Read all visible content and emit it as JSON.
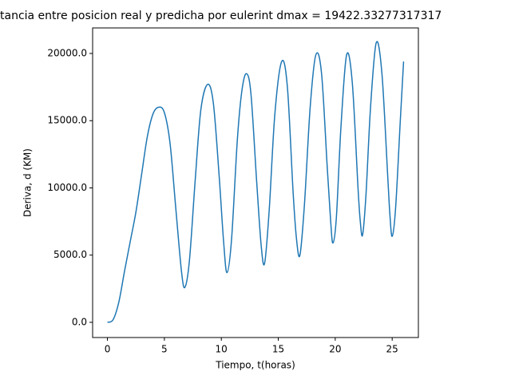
{
  "chart_data": {
    "type": "line",
    "title": "tancia entre posicion real y predicha por eulerint dmax = 19422.33277317317",
    "xlabel": "Tiempo, t(horas)",
    "ylabel": "Deriva, d (KM)",
    "x": [
      0,
      0.5,
      1,
      1.5,
      2,
      2.5,
      3,
      3.5,
      4,
      4.5,
      5,
      5.5,
      6,
      6.5,
      6.8,
      7.2,
      7.7,
      8.2,
      8.8,
      9.3,
      9.8,
      10.2,
      10.5,
      10.9,
      11.4,
      11.8,
      12.2,
      12.6,
      13.1,
      13.5,
      13.8,
      14.2,
      14.7,
      15.3,
      15.8,
      16.3,
      16.6,
      16.9,
      17.3,
      17.8,
      18.3,
      18.8,
      19.3,
      19.6,
      19.8,
      20.1,
      20.5,
      21,
      21.5,
      22,
      22.2,
      22.4,
      22.7,
      23.1,
      23.6,
      24.1,
      24.6,
      24.8,
      25,
      25.3,
      25.7,
      26
    ],
    "series": [
      {
        "color": "#1f77b4",
        "values": [
          0,
          200,
          1500,
          3800,
          6000,
          8200,
          11000,
          13800,
          15500,
          16000,
          15600,
          13300,
          8500,
          3800,
          2600,
          4600,
          10500,
          15800,
          17700,
          16300,
          11000,
          6000,
          3700,
          6200,
          13500,
          17200,
          18500,
          17000,
          10500,
          5700,
          4400,
          8300,
          15500,
          19400,
          17500,
          9700,
          6200,
          5000,
          8800,
          16000,
          19900,
          18500,
          11500,
          7500,
          5900,
          7800,
          14500,
          19900,
          17800,
          10000,
          7500,
          6500,
          9500,
          16000,
          20800,
          18500,
          11000,
          8000,
          6400,
          8500,
          14800,
          19400
        ]
      }
    ],
    "xlim": [
      -1.3,
      27.3
    ],
    "xticks": [
      0,
      5,
      10,
      15,
      20,
      25
    ],
    "ylim": [
      -1130,
      21900
    ],
    "yticks": [
      {
        "value": 0,
        "label": "0.0"
      },
      {
        "value": 5000,
        "label": "5000.0"
      },
      {
        "value": 10000,
        "label": "10000.0"
      },
      {
        "value": 15000,
        "label": "15000.0"
      },
      {
        "value": 20000,
        "label": "20000.0"
      }
    ],
    "grid": false
  }
}
